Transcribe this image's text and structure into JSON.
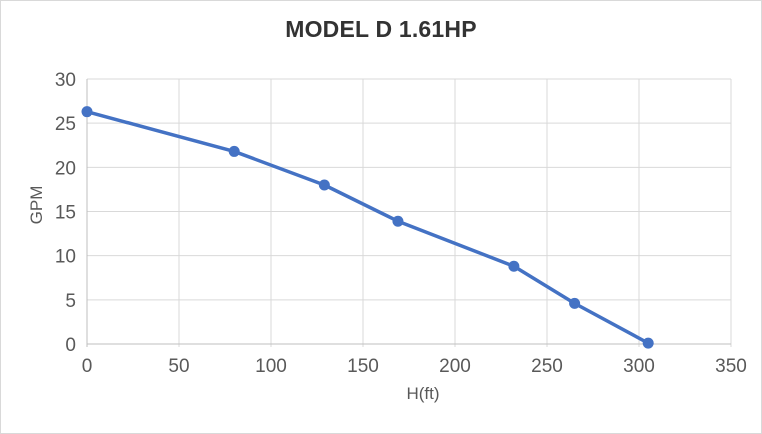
{
  "chart_data": {
    "type": "line",
    "title": "MODEL D 1.61HP",
    "xlabel": "H(ft)",
    "ylabel": "GPM",
    "xlim": [
      0,
      350
    ],
    "ylim": [
      0,
      30
    ],
    "x_ticks": [
      0,
      50,
      100,
      150,
      200,
      250,
      300,
      350
    ],
    "y_ticks": [
      0,
      5,
      10,
      15,
      20,
      25,
      30
    ],
    "grid": true,
    "legend": false,
    "series": [
      {
        "name": "MODEL D 1.61HP",
        "x": [
          0,
          80,
          129,
          169,
          232,
          265,
          305
        ],
        "y": [
          26.3,
          21.8,
          18.0,
          13.9,
          8.8,
          4.6,
          0.1
        ],
        "color": "#4472C4",
        "marker": "circle"
      }
    ],
    "colors": {
      "line": "#4472C4",
      "gridline": "#D9D9D9",
      "axis_line": "#BFBFBF",
      "tick_label": "#595959",
      "axis_title": "#595959",
      "title": "#333333",
      "background": "#FFFFFF",
      "border": "#D9D9D9"
    }
  }
}
